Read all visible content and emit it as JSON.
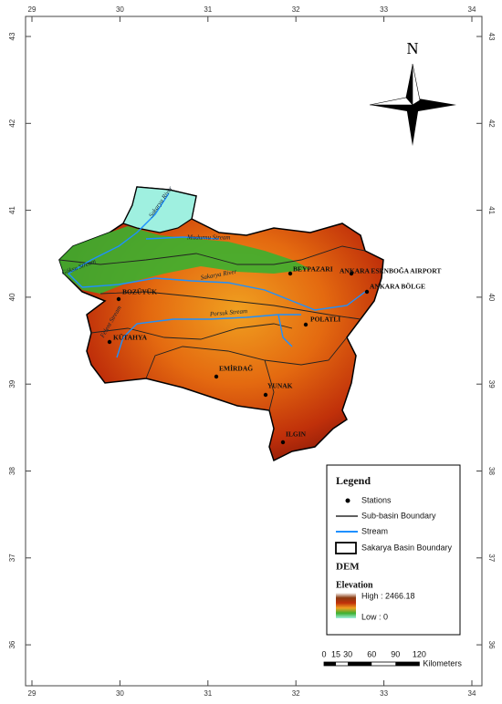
{
  "map": {
    "lon_labels": [
      29,
      30,
      31,
      32,
      33,
      34
    ],
    "lat_labels": [
      36,
      37,
      38,
      39,
      40,
      41,
      42,
      43
    ],
    "north": "N",
    "stations": [
      "BEYPAZARI",
      "ANKARA ESENBOĞA AIRPORT",
      "ANKARA BÖLGE",
      "BOZÜYÜK",
      "POLATLI",
      "KÜTAHYA",
      "EMİRDAĞ",
      "YUNAK",
      "ILGIN"
    ],
    "streams": [
      "Sakarya River",
      "Mudurnu Stream",
      "Göksu Stream",
      "Sakarya River",
      "Porsuk Stream",
      "Felent Stream"
    ],
    "legend": {
      "title": "Legend",
      "items": [
        "Stations",
        "Sub-basin Boundary",
        "Stream",
        "Sakarya Basin Boundary"
      ],
      "dem": "DEM",
      "elevation": "Elevation",
      "high": "High : 2466.18",
      "low": "Low : 0"
    },
    "scale": {
      "ticks": [
        0,
        15,
        30,
        60,
        90,
        120
      ],
      "unit": "Kilometers"
    }
  }
}
